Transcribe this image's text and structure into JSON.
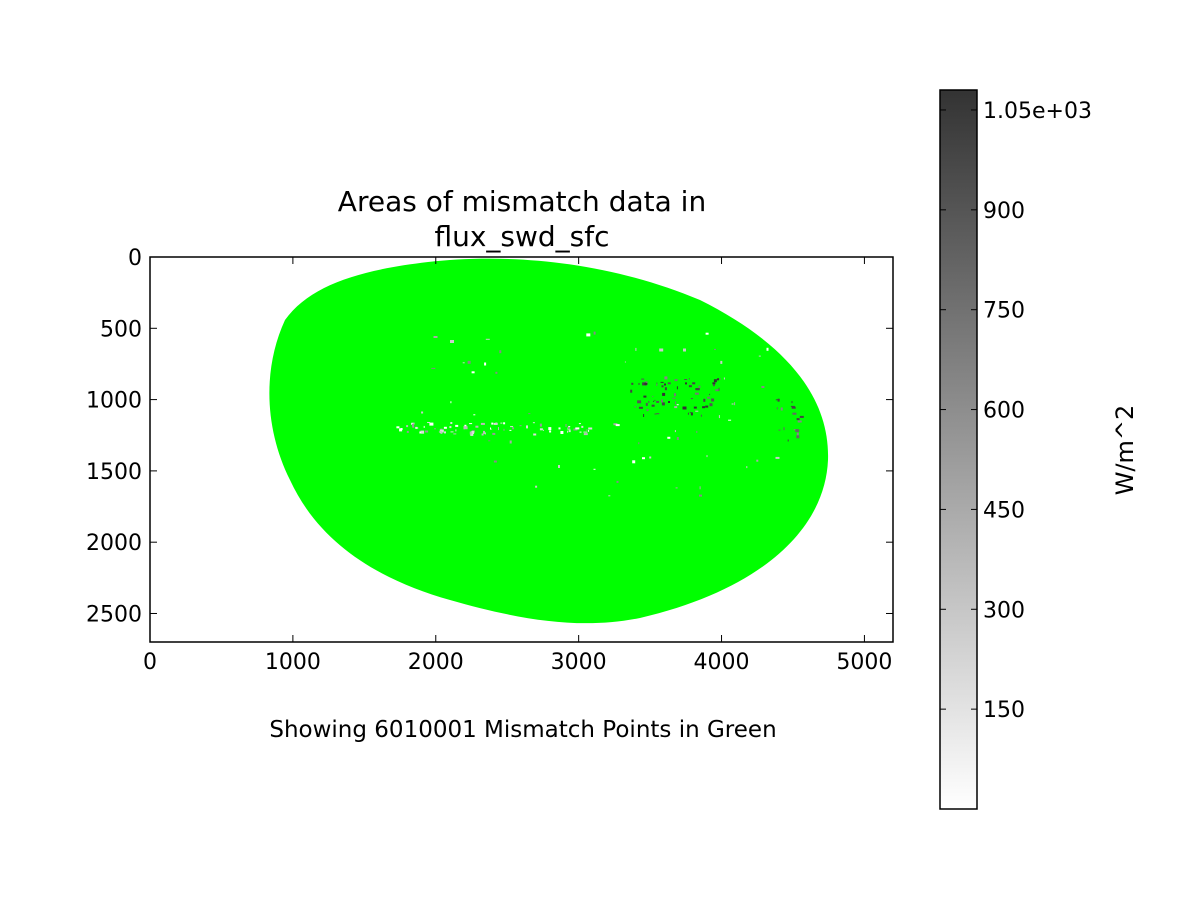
{
  "chart_data": {
    "type": "heatmap",
    "title_lines": [
      "Areas of mismatch data in",
      "flux_swd_sfc"
    ],
    "xlabel": "Showing 6010001 Mismatch Points in Green",
    "ylabel": "",
    "xlim": [
      0,
      5200
    ],
    "ylim": [
      2700,
      0
    ],
    "x_ticks": [
      0,
      1000,
      2000,
      3000,
      4000,
      5000
    ],
    "y_ticks": [
      0,
      500,
      1000,
      1500,
      2000,
      2500
    ],
    "mismatch_color": "#00ff00",
    "mismatch_region": {
      "shape": "earth-disk",
      "x_range": [
        840,
        4740
      ],
      "y_range": [
        20,
        2550
      ]
    },
    "colorbar": {
      "label": "W/m^2",
      "tick_labels": [
        "1.05e+03",
        "900",
        "750",
        "600",
        "450",
        "300",
        "150"
      ],
      "tick_values": [
        1050,
        900,
        750,
        600,
        450,
        300,
        150
      ],
      "range": [
        0,
        1080
      ],
      "colormap": "Greys",
      "color_low": "#ffffff",
      "color_high": "#333333"
    }
  }
}
